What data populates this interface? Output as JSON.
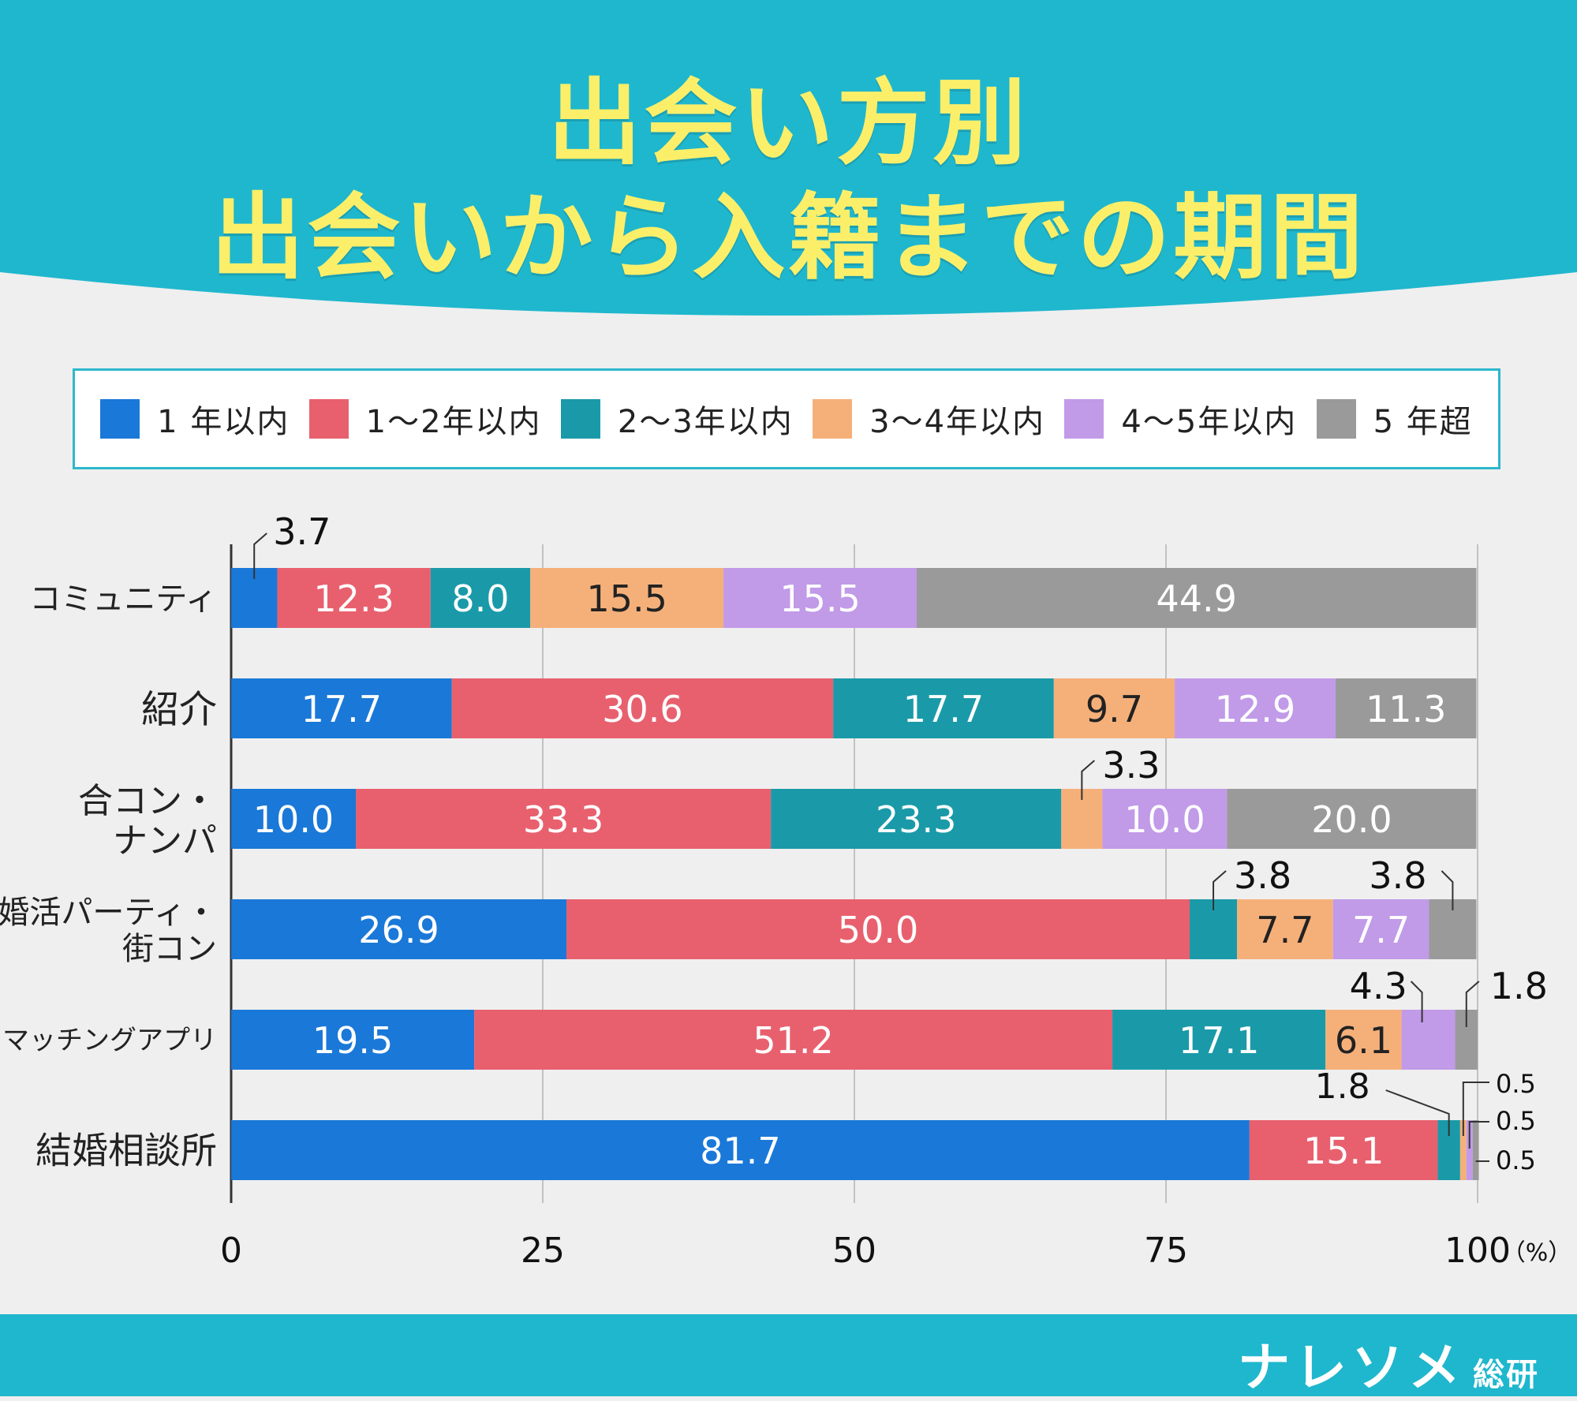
{
  "title": {
    "line1": "出会い方別",
    "line2": "出会いから入籍までの期間"
  },
  "legend": [
    {
      "label": "1 年以内",
      "color": "#1a78d8"
    },
    {
      "label": "1～2年以内",
      "color": "#e8606e"
    },
    {
      "label": "2～3年以内",
      "color": "#1a9aa8"
    },
    {
      "label": "3～4年以内",
      "color": "#f5b07a"
    },
    {
      "label": "4～5年以内",
      "color": "#c19ae8"
    },
    {
      "label": "5 年超",
      "color": "#9a9a9a"
    }
  ],
  "brand": {
    "name": "ナレソメ",
    "suffix": "総研"
  },
  "chart_data": {
    "type": "bar",
    "orientation": "horizontal",
    "stacked": true,
    "categories": [
      "コミュニティ",
      "紹介",
      "合コン・ナンパ",
      "婚活パーティ・街コン",
      "マッチングアプリ",
      "結婚相談所"
    ],
    "series": [
      {
        "name": "1 年以内",
        "color": "#1a78d8",
        "values": [
          3.7,
          17.7,
          10.0,
          26.9,
          19.5,
          81.7
        ]
      },
      {
        "name": "1～2年以内",
        "color": "#e8606e",
        "values": [
          12.3,
          30.6,
          33.3,
          50.0,
          51.2,
          15.1
        ]
      },
      {
        "name": "2～3年以内",
        "color": "#1a9aa8",
        "values": [
          8.0,
          17.7,
          23.3,
          3.8,
          17.1,
          1.8
        ]
      },
      {
        "name": "3～4年以内",
        "color": "#f5b07a",
        "values": [
          15.5,
          9.7,
          3.3,
          7.7,
          6.1,
          0.5
        ]
      },
      {
        "name": "4～5年以内",
        "color": "#c19ae8",
        "values": [
          15.5,
          12.9,
          10.0,
          7.7,
          4.3,
          0.5
        ]
      },
      {
        "name": "5 年超",
        "color": "#9a9a9a",
        "values": [
          44.9,
          11.3,
          20.0,
          3.8,
          1.8,
          0.5
        ]
      }
    ],
    "x_ticks": [
      "0",
      "25",
      "50",
      "75",
      "100"
    ],
    "x_unit": "（%）",
    "xlim": [
      0,
      100
    ],
    "grid": true
  }
}
